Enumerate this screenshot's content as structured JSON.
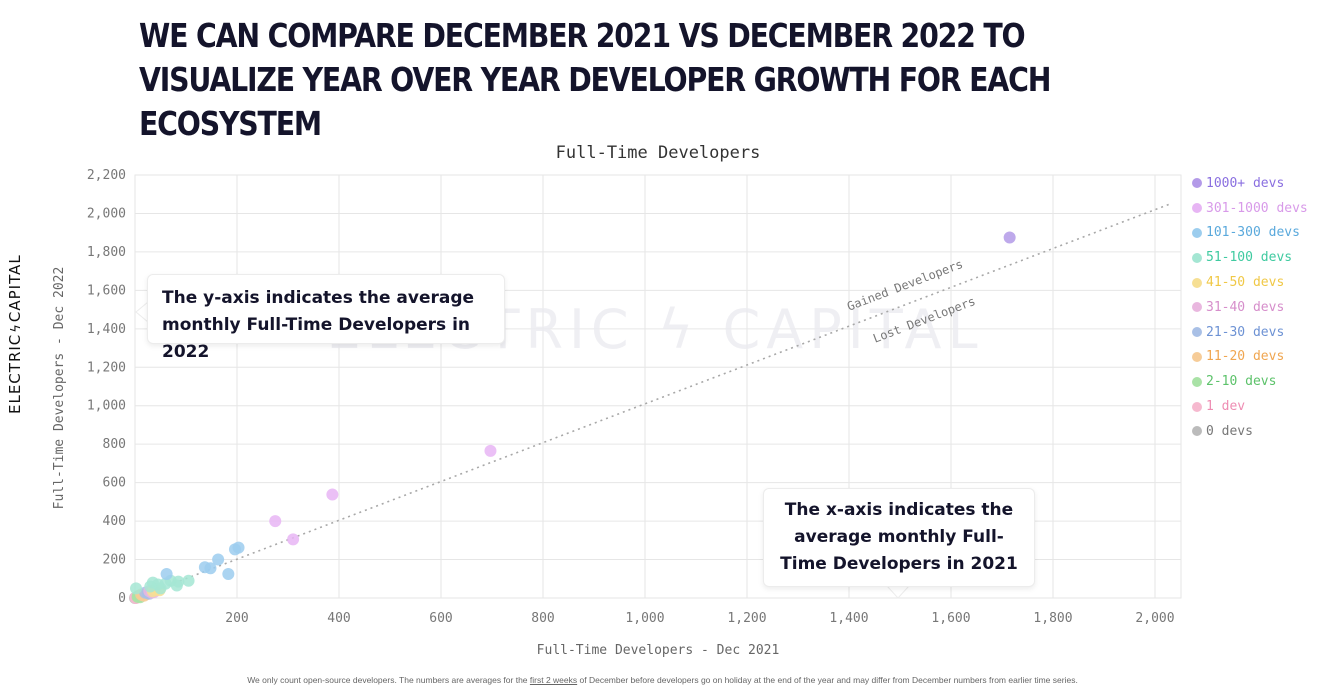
{
  "headline": "WE CAN COMPARE DECEMBER 2021 VS DECEMBER 2022 TO VISUALIZE YEAR OVER YEAR DEVELOPER GROWTH FOR EACH ECOSYSTEM",
  "brand": {
    "left": "ELECTRIC",
    "right": "CAPITAL",
    "bolt": "ϟ"
  },
  "watermark": "ELECTRIC ϟ CAPITAL",
  "callouts": {
    "y_axis": "The y-axis indicates the average monthly Full-Time Developers in 2022",
    "x_axis": "The x-axis indicates the average monthly Full-Time Developers in 2021"
  },
  "footnote": {
    "before": "We only count open-source developers. The numbers are averages for the ",
    "link": "first 2 weeks",
    "after": " of December before developers go on holiday at the end of the year and may differ from December numbers from earlier time series."
  },
  "chart_data": {
    "type": "scatter",
    "title": "Full-Time Developers",
    "xlabel": "Full-Time Developers - Dec 2021",
    "ylabel": "Full-Time Developers - Dec 2022",
    "xlim": [
      0,
      2060
    ],
    "ylim": [
      0,
      2200
    ],
    "xticks": [
      200,
      400,
      600,
      800,
      1000,
      1200,
      1400,
      1600,
      1800,
      2000
    ],
    "xtick_labels": [
      "200",
      "400",
      "600",
      "800",
      "1,000",
      "1,200",
      "1,400",
      "1,600",
      "1,800",
      "2,000"
    ],
    "yticks": [
      0,
      200,
      400,
      600,
      800,
      1000,
      1200,
      1400,
      1600,
      1800,
      2000,
      2200
    ],
    "ytick_labels": [
      "0",
      "200",
      "400",
      "600",
      "800",
      "1,000",
      "1,200",
      "1,400",
      "1,600",
      "1,800",
      "2,000",
      "2,200"
    ],
    "grid": true,
    "legend_position": "right",
    "reference_line": {
      "from": [
        0,
        0
      ],
      "to": [
        2030,
        2050
      ],
      "label_above": "Gained Developers",
      "label_below": "Lost Developers",
      "color": "#a8a8a8"
    },
    "series": [
      {
        "name": "1000+ devs",
        "color": "#b39ae8",
        "text_color": "#8a6fe0",
        "points": [
          [
            1715,
            1875
          ]
        ]
      },
      {
        "name": "301-1000 devs",
        "color": "#e7b5f4",
        "text_color": "#d89ae9",
        "points": [
          [
            697,
            765
          ],
          [
            387,
            538
          ],
          [
            275,
            400
          ],
          [
            310,
            305
          ]
        ]
      },
      {
        "name": "101-300 devs",
        "color": "#9ccdee",
        "text_color": "#5aa9dc",
        "points": [
          [
            203,
            262
          ],
          [
            196,
            253
          ],
          [
            163,
            200
          ],
          [
            137,
            160
          ],
          [
            148,
            155
          ],
          [
            183,
            125
          ],
          [
            62,
            125
          ]
        ]
      },
      {
        "name": "51-100 devs",
        "color": "#a4e6d3",
        "text_color": "#3fcaa0",
        "points": [
          [
            105,
            90
          ],
          [
            85,
            85
          ],
          [
            70,
            90
          ],
          [
            60,
            75
          ],
          [
            45,
            70
          ],
          [
            35,
            80
          ],
          [
            50,
            50
          ],
          [
            2,
            50
          ],
          [
            82,
            65
          ],
          [
            30,
            60
          ]
        ]
      },
      {
        "name": "41-50 devs",
        "color": "#f6df93",
        "text_color": "#f0c846",
        "points": [
          [
            40,
            45
          ],
          [
            48,
            40
          ],
          [
            35,
            35
          ]
        ]
      },
      {
        "name": "31-40 devs",
        "color": "#e9b7df",
        "text_color": "#d68ecb",
        "points": [
          [
            38,
            32
          ],
          [
            28,
            36
          ],
          [
            33,
            28
          ]
        ]
      },
      {
        "name": "21-30 devs",
        "color": "#a9c0e6",
        "text_color": "#6d92d4",
        "points": [
          [
            25,
            25
          ],
          [
            20,
            28
          ],
          [
            28,
            22
          ]
        ]
      },
      {
        "name": "11-20 devs",
        "color": "#f6cc98",
        "text_color": "#f0a650",
        "points": [
          [
            15,
            15
          ],
          [
            18,
            12
          ],
          [
            12,
            18
          ],
          [
            22,
            20
          ]
        ]
      },
      {
        "name": "2-10 devs",
        "color": "#a9e2a6",
        "text_color": "#5cc26a",
        "points": [
          [
            8,
            8
          ],
          [
            5,
            6
          ],
          [
            10,
            4
          ],
          [
            6,
            10
          ]
        ]
      },
      {
        "name": "1 dev",
        "color": "#f6b9cf",
        "text_color": "#ee8db3",
        "points": [
          [
            1,
            1
          ],
          [
            2,
            0
          ]
        ]
      },
      {
        "name": "0 devs",
        "color": "#bbbbbb",
        "text_color": "#777777",
        "points": [
          [
            0,
            0
          ]
        ]
      }
    ]
  }
}
